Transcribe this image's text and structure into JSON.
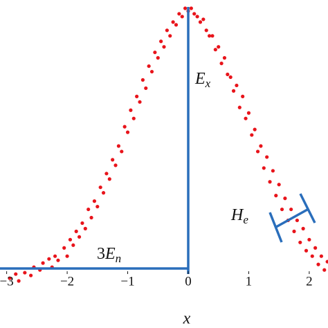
{
  "chart_data": {
    "type": "scatter",
    "x_label": "x",
    "annotations": [
      {
        "prefix": "",
        "text": "E",
        "sub": "x"
      },
      {
        "prefix": "",
        "text": "H",
        "sub": "e"
      },
      {
        "prefix": "3",
        "text": "E",
        "sub": "n"
      }
    ],
    "xlim": [
      -3.11,
      2.31
    ],
    "ylim": [
      0,
      1
    ],
    "xticks": [
      {
        "value": -3,
        "label": "−3"
      },
      {
        "value": -2,
        "label": "−2"
      },
      {
        "value": -1,
        "label": "−1"
      },
      0,
      1,
      2
    ],
    "color": "#e8141b",
    "x": [
      -2.95,
      -2.85,
      -2.8,
      -2.7,
      -2.6,
      -2.55,
      -2.45,
      -2.4,
      -2.3,
      -2.25,
      -2.2,
      -2.15,
      -2.05,
      -2.0,
      -1.95,
      -1.9,
      -1.85,
      -1.8,
      -1.75,
      -1.7,
      -1.65,
      -1.6,
      -1.55,
      -1.5,
      -1.45,
      -1.4,
      -1.35,
      -1.3,
      -1.25,
      -1.2,
      -1.15,
      -1.1,
      -1.05,
      -1.0,
      -0.95,
      -0.9,
      -0.85,
      -0.8,
      -0.75,
      -0.7,
      -0.65,
      -0.6,
      -0.55,
      -0.5,
      -0.45,
      -0.4,
      -0.35,
      -0.3,
      -0.25,
      -0.2,
      -0.15,
      -0.1,
      -0.05,
      0.0,
      0.05,
      0.1,
      0.15,
      0.2,
      0.25,
      0.3,
      0.35,
      0.4,
      0.45,
      0.5,
      0.55,
      0.6,
      0.65,
      0.7,
      0.75,
      0.8,
      0.85,
      0.9,
      0.95,
      1.0,
      1.05,
      1.1,
      1.15,
      1.2,
      1.25,
      1.3,
      1.35,
      1.4,
      1.45,
      1.5,
      1.55,
      1.6,
      1.65,
      1.7,
      1.75,
      1.8,
      1.85,
      1.9,
      1.95,
      2.0,
      2.05,
      2.1,
      2.15,
      2.2,
      2.25,
      2.3
    ],
    "values": [
      0.02,
      0.035,
      0.01,
      0.04,
      0.03,
      0.06,
      0.05,
      0.075,
      0.09,
      0.06,
      0.1,
      0.085,
      0.13,
      0.1,
      0.16,
      0.14,
      0.19,
      0.17,
      0.22,
      0.2,
      0.27,
      0.24,
      0.3,
      0.28,
      0.35,
      0.33,
      0.4,
      0.38,
      0.45,
      0.43,
      0.5,
      0.48,
      0.57,
      0.55,
      0.63,
      0.6,
      0.68,
      0.66,
      0.74,
      0.71,
      0.79,
      0.77,
      0.84,
      0.82,
      0.88,
      0.86,
      0.92,
      0.9,
      0.95,
      0.94,
      0.98,
      0.97,
      1.0,
      0.99,
      1.0,
      0.98,
      0.97,
      0.95,
      0.96,
      0.92,
      0.9,
      0.9,
      0.85,
      0.86,
      0.8,
      0.82,
      0.76,
      0.75,
      0.7,
      0.72,
      0.64,
      0.68,
      0.6,
      0.62,
      0.54,
      0.56,
      0.48,
      0.5,
      0.42,
      0.46,
      0.37,
      0.41,
      0.32,
      0.36,
      0.27,
      0.31,
      0.23,
      0.27,
      0.19,
      0.23,
      0.15,
      0.2,
      0.12,
      0.16,
      0.1,
      0.13,
      0.07,
      0.1,
      0.05,
      0.08
    ]
  }
}
